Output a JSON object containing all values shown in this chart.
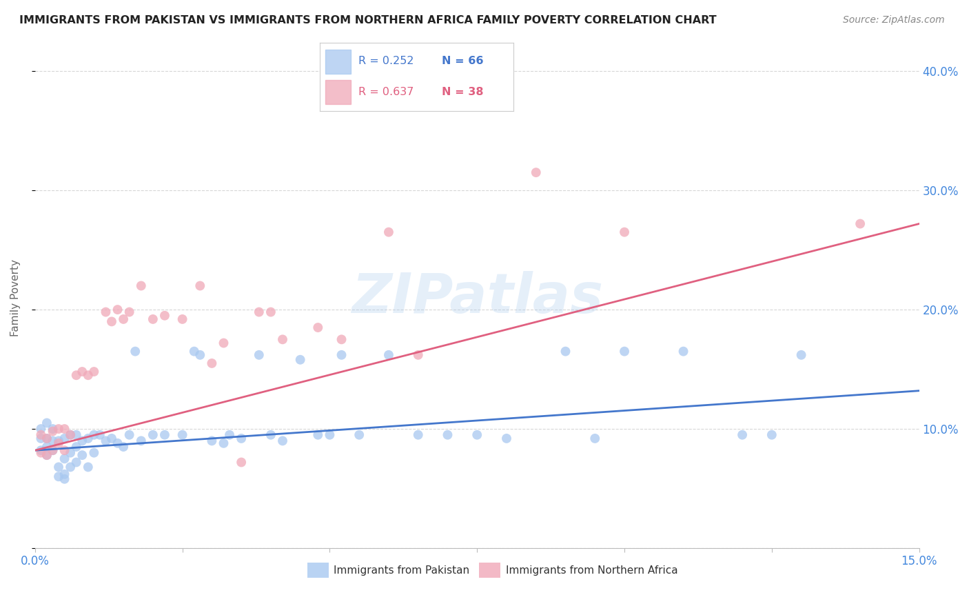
{
  "title": "IMMIGRANTS FROM PAKISTAN VS IMMIGRANTS FROM NORTHERN AFRICA FAMILY POVERTY CORRELATION CHART",
  "source": "Source: ZipAtlas.com",
  "ylabel_label": "Family Poverty",
  "xlim": [
    0.0,
    0.15
  ],
  "ylim": [
    0.0,
    0.42
  ],
  "xticks": [
    0.0,
    0.025,
    0.05,
    0.075,
    0.1,
    0.125,
    0.15
  ],
  "yticks": [
    0.0,
    0.1,
    0.2,
    0.3,
    0.4
  ],
  "pakistan_R": 0.252,
  "pakistan_N": 66,
  "northern_africa_R": 0.637,
  "northern_africa_N": 38,
  "pakistan_color": "#A8C8F0",
  "northern_africa_color": "#F0A8B8",
  "pakistan_line_color": "#4477CC",
  "northern_africa_line_color": "#E06080",
  "background_color": "#FFFFFF",
  "grid_color": "#CCCCCC",
  "title_color": "#222222",
  "axis_label_color": "#666666",
  "tick_color": "#4488DD",
  "watermark": "ZIPatlas",
  "pakistan_x": [
    0.001,
    0.001,
    0.001,
    0.002,
    0.002,
    0.002,
    0.002,
    0.003,
    0.003,
    0.003,
    0.004,
    0.004,
    0.004,
    0.005,
    0.005,
    0.005,
    0.005,
    0.006,
    0.006,
    0.006,
    0.007,
    0.007,
    0.007,
    0.008,
    0.008,
    0.009,
    0.009,
    0.01,
    0.01,
    0.011,
    0.012,
    0.013,
    0.014,
    0.015,
    0.016,
    0.017,
    0.018,
    0.02,
    0.022,
    0.025,
    0.027,
    0.028,
    0.03,
    0.032,
    0.033,
    0.035,
    0.038,
    0.04,
    0.042,
    0.045,
    0.048,
    0.05,
    0.052,
    0.055,
    0.06,
    0.065,
    0.07,
    0.075,
    0.08,
    0.09,
    0.095,
    0.1,
    0.11,
    0.12,
    0.125,
    0.13
  ],
  "pakistan_y": [
    0.082,
    0.092,
    0.1,
    0.078,
    0.085,
    0.092,
    0.105,
    0.082,
    0.09,
    0.1,
    0.06,
    0.068,
    0.09,
    0.058,
    0.062,
    0.075,
    0.092,
    0.068,
    0.08,
    0.095,
    0.072,
    0.085,
    0.095,
    0.078,
    0.09,
    0.068,
    0.092,
    0.08,
    0.095,
    0.095,
    0.09,
    0.092,
    0.088,
    0.085,
    0.095,
    0.165,
    0.09,
    0.095,
    0.095,
    0.095,
    0.165,
    0.162,
    0.09,
    0.088,
    0.095,
    0.092,
    0.162,
    0.095,
    0.09,
    0.158,
    0.095,
    0.095,
    0.162,
    0.095,
    0.162,
    0.095,
    0.095,
    0.095,
    0.092,
    0.165,
    0.092,
    0.165,
    0.165,
    0.095,
    0.095,
    0.162
  ],
  "northern_africa_x": [
    0.001,
    0.001,
    0.002,
    0.002,
    0.003,
    0.003,
    0.004,
    0.004,
    0.005,
    0.005,
    0.006,
    0.007,
    0.008,
    0.009,
    0.01,
    0.012,
    0.013,
    0.014,
    0.015,
    0.016,
    0.018,
    0.02,
    0.022,
    0.025,
    0.028,
    0.03,
    0.032,
    0.035,
    0.038,
    0.04,
    0.042,
    0.048,
    0.052,
    0.06,
    0.065,
    0.085,
    0.1,
    0.14
  ],
  "northern_africa_y": [
    0.08,
    0.095,
    0.078,
    0.092,
    0.082,
    0.098,
    0.088,
    0.1,
    0.082,
    0.1,
    0.095,
    0.145,
    0.148,
    0.145,
    0.148,
    0.198,
    0.19,
    0.2,
    0.192,
    0.198,
    0.22,
    0.192,
    0.195,
    0.192,
    0.22,
    0.155,
    0.172,
    0.072,
    0.198,
    0.198,
    0.175,
    0.185,
    0.175,
    0.265,
    0.162,
    0.315,
    0.265,
    0.272
  ],
  "pk_line_x": [
    0.0,
    0.15
  ],
  "pk_line_y": [
    0.082,
    0.132
  ],
  "na_line_x": [
    0.0,
    0.15
  ],
  "na_line_y": [
    0.082,
    0.272
  ]
}
